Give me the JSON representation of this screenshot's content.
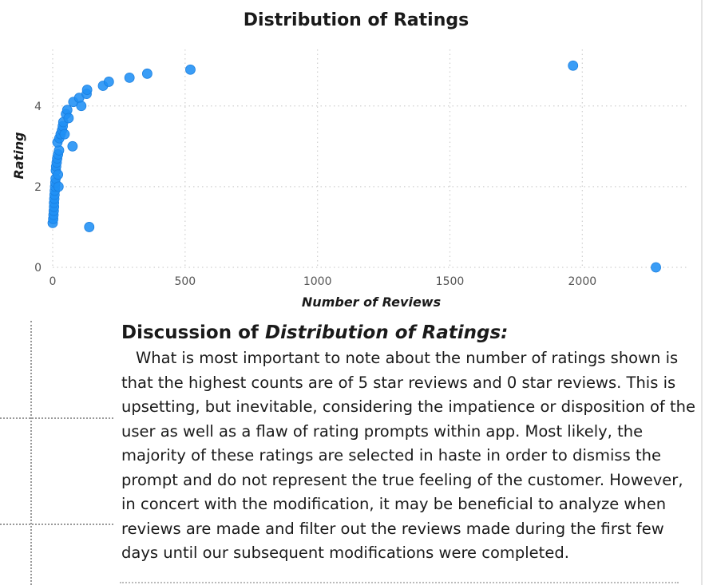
{
  "chart_data": {
    "type": "scatter",
    "title": "Distribution of Ratings",
    "xlabel": "Number of Reviews",
    "ylabel": "Rating",
    "xlim": [
      0,
      2400
    ],
    "ylim": [
      0,
      5.4
    ],
    "xticks": [
      0,
      500,
      1000,
      1500,
      2000
    ],
    "yticks": [
      0,
      2,
      4
    ],
    "grid": true,
    "legend": "none",
    "color": "#1f8ff5",
    "points": [
      {
        "x": 0,
        "y": 1.1
      },
      {
        "x": 2,
        "y": 1.2
      },
      {
        "x": 3,
        "y": 1.3
      },
      {
        "x": 4,
        "y": 1.4
      },
      {
        "x": 5,
        "y": 1.5
      },
      {
        "x": 5,
        "y": 1.6
      },
      {
        "x": 6,
        "y": 1.7
      },
      {
        "x": 7,
        "y": 1.8
      },
      {
        "x": 8,
        "y": 1.9
      },
      {
        "x": 9,
        "y": 2.0
      },
      {
        "x": 10,
        "y": 2.1
      },
      {
        "x": 11,
        "y": 2.2
      },
      {
        "x": 12,
        "y": 2.4
      },
      {
        "x": 13,
        "y": 2.5
      },
      {
        "x": 15,
        "y": 2.6
      },
      {
        "x": 17,
        "y": 2.7
      },
      {
        "x": 20,
        "y": 2.8
      },
      {
        "x": 24,
        "y": 2.9
      },
      {
        "x": 22,
        "y": 2.0
      },
      {
        "x": 20,
        "y": 2.3
      },
      {
        "x": 18,
        "y": 3.1
      },
      {
        "x": 25,
        "y": 3.2
      },
      {
        "x": 30,
        "y": 3.3
      },
      {
        "x": 35,
        "y": 3.4
      },
      {
        "x": 38,
        "y": 3.5
      },
      {
        "x": 40,
        "y": 3.6
      },
      {
        "x": 45,
        "y": 3.3
      },
      {
        "x": 50,
        "y": 3.8
      },
      {
        "x": 55,
        "y": 3.9
      },
      {
        "x": 60,
        "y": 3.7
      },
      {
        "x": 75,
        "y": 3.0
      },
      {
        "x": 78,
        "y": 4.1
      },
      {
        "x": 100,
        "y": 4.2
      },
      {
        "x": 108,
        "y": 4.0
      },
      {
        "x": 128,
        "y": 4.3
      },
      {
        "x": 130,
        "y": 4.4
      },
      {
        "x": 138,
        "y": 1.0
      },
      {
        "x": 190,
        "y": 4.5
      },
      {
        "x": 212,
        "y": 4.6
      },
      {
        "x": 290,
        "y": 4.7
      },
      {
        "x": 357,
        "y": 4.8
      },
      {
        "x": 520,
        "y": 4.9
      },
      {
        "x": 1965,
        "y": 5.0
      },
      {
        "x": 2278,
        "y": 0.0
      }
    ]
  },
  "discussion": {
    "heading_prefix": "Discussion of ",
    "heading_emphasis": "Distribution of Ratings:",
    "body": "What is most important to note about the number of ratings shown is that the highest counts are of 5 star reviews and 0 star reviews. This is upsetting, but inevitable, considering the impatience or disposition of the user as well as a flaw of rating prompts within app. Most likely, the majority of these ratings are selected in haste in order to dismiss the prompt and do not represent the true feeling of the customer. However, in concert with the modification, it may be beneficial to analyze when reviews are made and filter out the reviews made during the first few days until our subsequent modifications were completed."
  }
}
